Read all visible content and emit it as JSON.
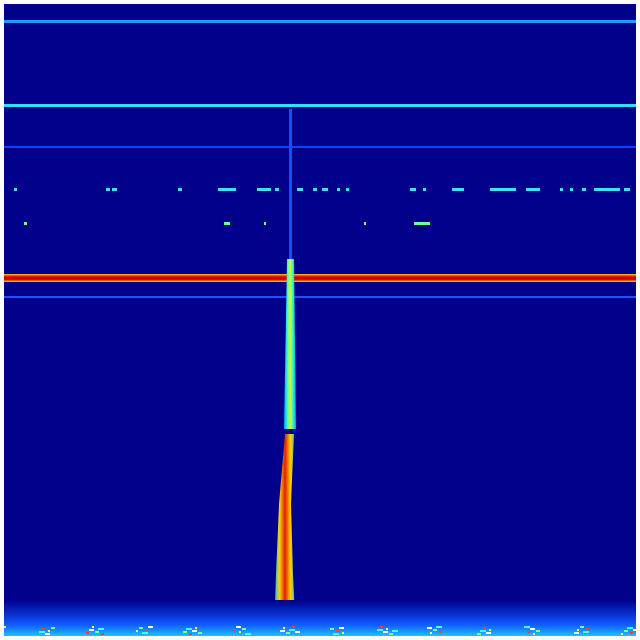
{
  "image": {
    "kind": "spectrogram",
    "colormap": "jet",
    "colors": {
      "background": "#00008b",
      "low": "#0000ff",
      "mid": "#00ffff",
      "green": "#7fff7f",
      "high": "#ffff00",
      "peak": "#ff0000",
      "border": "#ffffff"
    }
  }
}
